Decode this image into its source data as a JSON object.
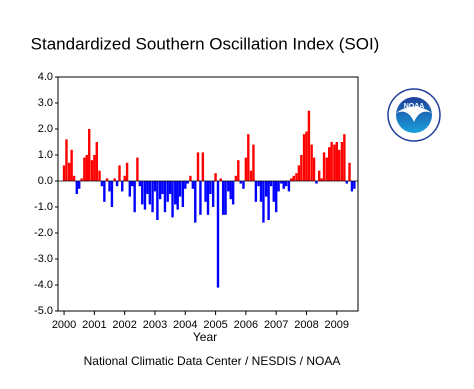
{
  "chart_data": {
    "type": "bar",
    "title": "Standardized Southern Oscillation Index (SOI)",
    "x_label": "Year",
    "footer": "National Climatic Data Center / NESDIS / NOAA",
    "logo_text": "NOAA",
    "positive_color": "#ff0000",
    "negative_color": "#0000ff",
    "xlim": [
      1999.8,
      2009.7
    ],
    "xticks": [
      2000,
      2001,
      2002,
      2003,
      2004,
      2005,
      2006,
      2007,
      2008,
      2009
    ],
    "ylim": [
      -5,
      4
    ],
    "yticks": [
      {
        "value": 4,
        "label": "4.0"
      },
      {
        "value": 3,
        "label": "3.0"
      },
      {
        "value": 2,
        "label": "2.0"
      },
      {
        "value": 1,
        "label": "1.0"
      },
      {
        "value": 0,
        "label": "0.0"
      },
      {
        "value": -1,
        "label": "-1.0"
      },
      {
        "value": -2,
        "label": "-2.0"
      },
      {
        "value": -3,
        "label": "-3.0"
      },
      {
        "value": -4,
        "label": "-4.0"
      },
      {
        "value": -5,
        "label": "-5.0"
      }
    ],
    "x": [
      2000.0,
      2000.08,
      2000.17,
      2000.25,
      2000.33,
      2000.42,
      2000.5,
      2000.58,
      2000.67,
      2000.75,
      2000.83,
      2000.92,
      2001.0,
      2001.08,
      2001.17,
      2001.25,
      2001.33,
      2001.42,
      2001.5,
      2001.58,
      2001.67,
      2001.75,
      2001.83,
      2001.92,
      2002.0,
      2002.08,
      2002.17,
      2002.25,
      2002.33,
      2002.42,
      2002.5,
      2002.58,
      2002.67,
      2002.75,
      2002.83,
      2002.92,
      2003.0,
      2003.08,
      2003.17,
      2003.25,
      2003.33,
      2003.42,
      2003.5,
      2003.58,
      2003.67,
      2003.75,
      2003.83,
      2003.92,
      2004.0,
      2004.08,
      2004.17,
      2004.25,
      2004.33,
      2004.42,
      2004.5,
      2004.58,
      2004.67,
      2004.75,
      2004.83,
      2004.92,
      2005.0,
      2005.08,
      2005.17,
      2005.25,
      2005.33,
      2005.42,
      2005.5,
      2005.58,
      2005.67,
      2005.75,
      2005.83,
      2005.92,
      2006.0,
      2006.08,
      2006.17,
      2006.25,
      2006.33,
      2006.42,
      2006.5,
      2006.58,
      2006.67,
      2006.75,
      2006.83,
      2006.92,
      2007.0,
      2007.08,
      2007.17,
      2007.25,
      2007.33,
      2007.42,
      2007.5,
      2007.58,
      2007.67,
      2007.75,
      2007.83,
      2007.92,
      2008.0,
      2008.08,
      2008.17,
      2008.25,
      2008.33,
      2008.42,
      2008.5,
      2008.58,
      2008.67,
      2008.75,
      2008.83,
      2008.92,
      2009.0,
      2009.08,
      2009.17,
      2009.25,
      2009.33,
      2009.42,
      2009.5,
      2009.58
    ],
    "values": [
      0.6,
      1.6,
      0.7,
      1.2,
      0.2,
      -0.5,
      -0.3,
      0.1,
      0.9,
      1.0,
      2.0,
      0.8,
      1.0,
      1.5,
      0.4,
      -0.2,
      -0.8,
      0.1,
      -0.4,
      -1.0,
      0.1,
      -0.2,
      0.6,
      -0.4,
      0.2,
      0.7,
      -0.6,
      -0.2,
      -1.2,
      0.9,
      -0.2,
      -0.9,
      -1.1,
      -0.5,
      -0.9,
      -1.2,
      -0.4,
      -1.5,
      -0.7,
      -0.5,
      -1.2,
      -0.8,
      -0.5,
      -1.4,
      -0.9,
      -1.1,
      -0.6,
      -1.0,
      -0.3,
      -0.1,
      0.2,
      -0.3,
      -1.6,
      1.1,
      -1.3,
      1.1,
      -0.8,
      -1.3,
      -0.5,
      -1.0,
      0.3,
      -4.1,
      0.1,
      -1.3,
      -1.3,
      -0.4,
      -0.7,
      -0.9,
      0.2,
      0.8,
      -0.1,
      -0.3,
      0.9,
      1.8,
      0.4,
      1.4,
      -0.8,
      -0.2,
      -0.8,
      -1.6,
      -0.6,
      -1.5,
      -0.2,
      -0.8,
      -1.2,
      -0.4,
      -0.1,
      -0.3,
      -0.2,
      -0.4,
      0.1,
      0.2,
      0.3,
      0.6,
      1.0,
      1.8,
      1.9,
      2.7,
      1.4,
      0.9,
      -0.1,
      0.4,
      0.1,
      1.1,
      0.9,
      1.3,
      1.5,
      1.4,
      1.5,
      1.2,
      1.5,
      1.8,
      -0.1,
      0.7,
      -0.4,
      -0.3
    ]
  }
}
